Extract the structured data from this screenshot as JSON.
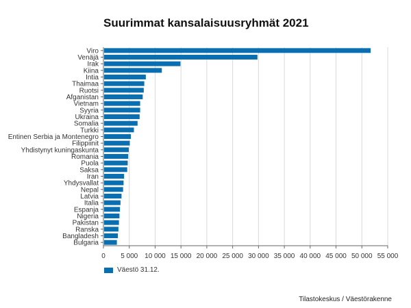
{
  "chart_data": {
    "type": "bar",
    "orientation": "horizontal",
    "title": "Suurimmat kansalaisuusryhmät 2021",
    "categories": [
      "Viro",
      "Venäjä",
      "Irak",
      "Kiina",
      "Intia",
      "Thaimaa",
      "Ruotsi",
      "Afganistan",
      "Vietnam",
      "Syyria",
      "Ukraina",
      "Somalia",
      "Turkki",
      "Entinen Serbia ja Montenegro",
      "Filippiinit",
      "Yhdistynyt kuningaskunta",
      "Romania",
      "Puola",
      "Saksa",
      "Iran",
      "Yhdysvallat",
      "Nepal",
      "Latvia",
      "Italia",
      "Espanja",
      "Nigeria",
      "Pakistan",
      "Ranska",
      "Bangladesh",
      "Bulgaria"
    ],
    "series": [
      {
        "name": "Väestö 31.12.",
        "color": "#0a6fb0",
        "values": [
          51700,
          29800,
          14900,
          11300,
          8200,
          7900,
          7800,
          7600,
          7100,
          7100,
          7000,
          6600,
          5900,
          5300,
          5100,
          4900,
          4800,
          4700,
          4600,
          4000,
          3900,
          3800,
          3500,
          3300,
          3200,
          3100,
          3000,
          2900,
          2800,
          2600
        ]
      }
    ],
    "xlim": [
      0,
      55000
    ],
    "x_ticks": [
      0,
      5000,
      10000,
      15000,
      20000,
      25000,
      30000,
      35000,
      40000,
      45000,
      50000,
      55000
    ],
    "x_tick_labels": [
      "0",
      "5 000",
      "10 000",
      "15 000",
      "20 000",
      "25 000",
      "30 000",
      "35 000",
      "40 000",
      "45 000",
      "50 000",
      "55 000"
    ],
    "xlabel": "",
    "ylabel": "",
    "grid": "vertical",
    "legend_position": "bottom-left"
  },
  "source": "Tilastokeskus / Väestörakenne"
}
